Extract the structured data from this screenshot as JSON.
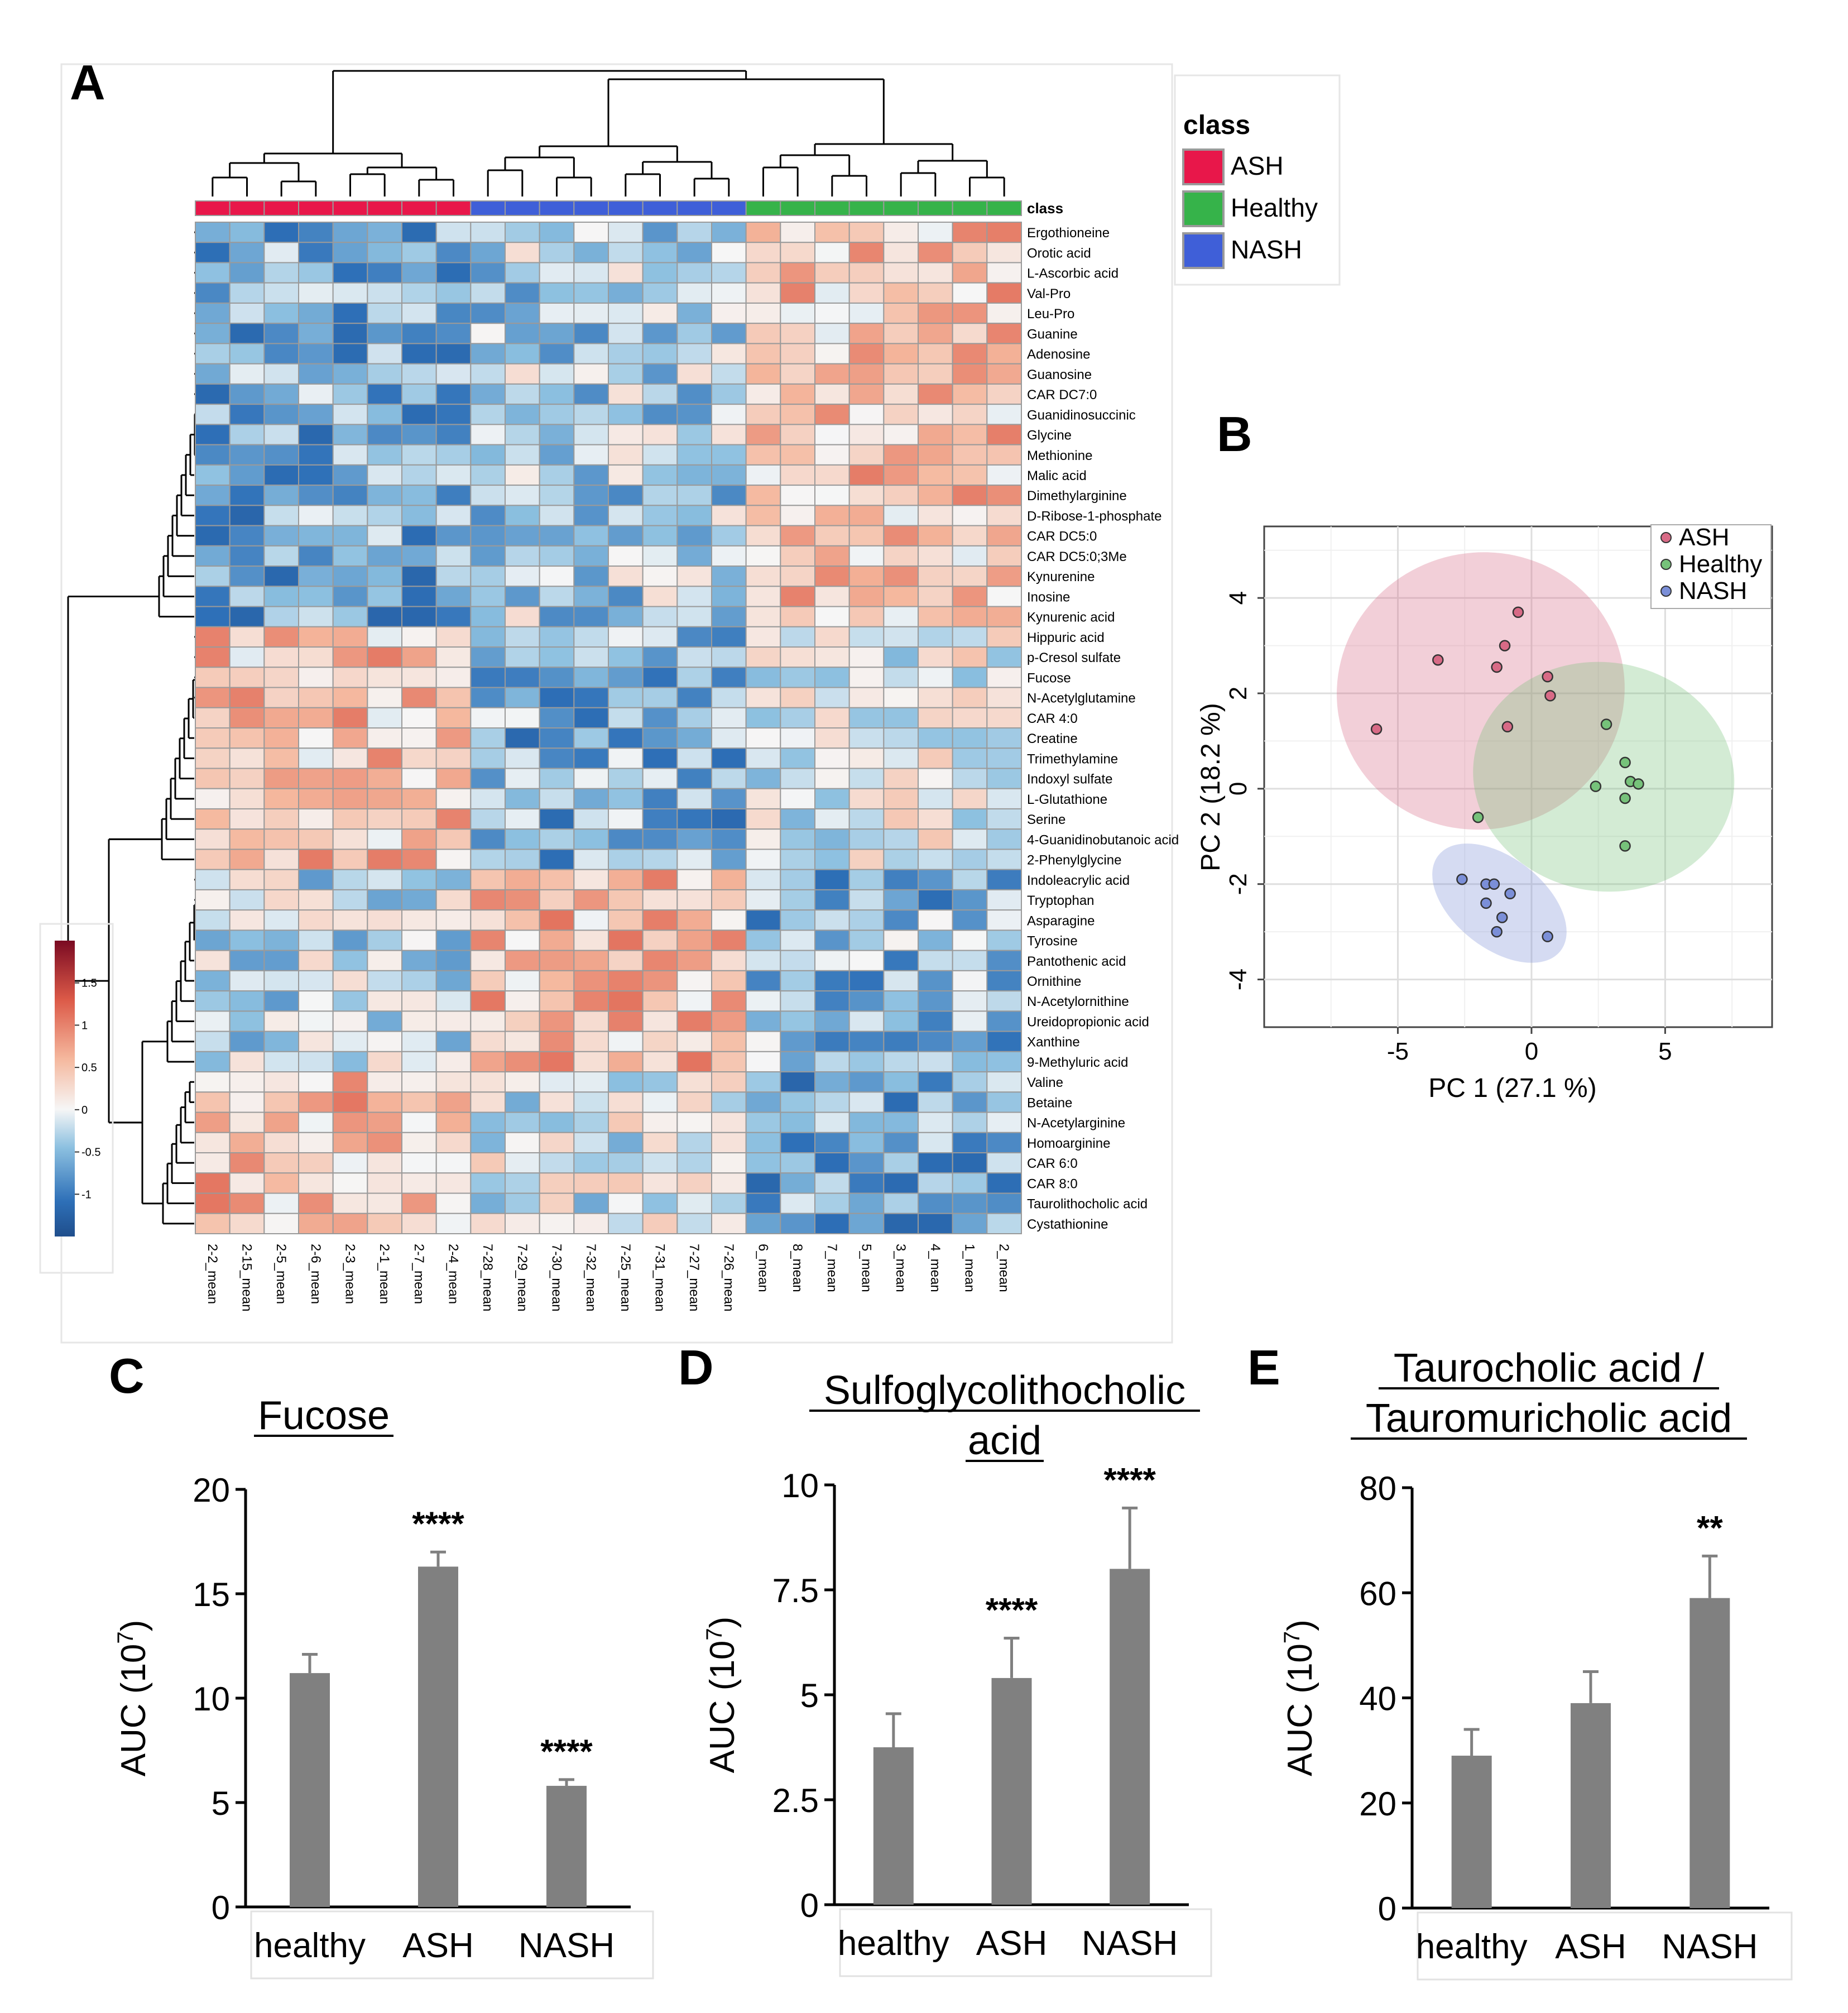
{
  "colors": {
    "ASH": "#e8174a",
    "Healthy": "#36b34a",
    "NASH": "#3f5fd8",
    "bar": "#808080",
    "pca_ASH": "#d86a86",
    "pca_Healthy": "#76c27a",
    "pca_NASH": "#7b8fd8"
  },
  "chart_data": [
    {
      "type": "heatmap",
      "panel": "A",
      "legend_title": "class",
      "class_track_label": "class",
      "classes": [
        "ASH",
        "Healthy",
        "NASH"
      ],
      "columns": [
        "2-2_mean",
        "2-15_mean",
        "2-5_mean",
        "2-6_mean",
        "2-3_mean",
        "2-1_mean",
        "2-7_mean",
        "2-4_mean",
        "7-28_mean",
        "7-29_mean",
        "7-30_mean",
        "7-32_mean",
        "7-25_mean",
        "7-31_mean",
        "7-27_mean",
        "7-26_mean",
        "6_mean",
        "8_mean",
        "7_mean",
        "5_mean",
        "3_mean",
        "4_mean",
        "1_mean",
        "2_mean"
      ],
      "column_classes": [
        "ASH",
        "ASH",
        "ASH",
        "ASH",
        "ASH",
        "ASH",
        "ASH",
        "ASH",
        "NASH",
        "NASH",
        "NASH",
        "NASH",
        "NASH",
        "NASH",
        "NASH",
        "NASH",
        "Healthy",
        "Healthy",
        "Healthy",
        "Healthy",
        "Healthy",
        "Healthy",
        "Healthy",
        "Healthy"
      ],
      "rows": [
        "Ergothioneine",
        "Orotic acid",
        "L-Ascorbic acid",
        "Val-Pro",
        "Leu-Pro",
        "Guanine",
        "Adenosine",
        "Guanosine",
        "CAR DC7:0",
        "Guanidinosuccinic",
        "Glycine",
        "Methionine",
        "Malic acid",
        "Dimethylarginine",
        "D-Ribose-1-phosphate",
        "CAR DC5:0",
        "CAR DC5:0;3Me",
        "Kynurenine",
        "Inosine",
        "Kynurenic acid",
        "Hippuric acid",
        "p-Cresol sulfate",
        "Fucose",
        "N-Acetylglutamine",
        "CAR 4:0",
        "Creatine",
        "Trimethylamine",
        "Indoxyl sulfate",
        "L-Glutathione",
        "Serine",
        "4-Guanidinobutanoic acid",
        "2-Phenylglycine",
        "Indoleacrylic acid",
        "Tryptophan",
        "Asparagine",
        "Tyrosine",
        "Pantothenic acid",
        "Ornithine",
        "N-Acetylornithine",
        "Ureidopropionic acid",
        "Xanthine",
        "9-Methyluric acid",
        "Valine",
        "Betaine",
        "N-Acetylarginine",
        "Homoarginine",
        "CAR 6:0",
        "CAR 8:0",
        "Taurolithocholic acid",
        "Cystathionine"
      ],
      "colorbar_ticks": [
        "1.5",
        "1",
        "0.5",
        "0",
        "-0.5",
        "-1"
      ],
      "colorbar_range": [
        -1.5,
        2.0
      ]
    },
    {
      "type": "scatter",
      "panel": "B",
      "xlabel": "PC 1 (27.1 %)",
      "ylabel": "PC 2 (18.2 %)",
      "xlim": [
        -10,
        9
      ],
      "ylim": [
        -5,
        5.5
      ],
      "xticks": [
        "-5",
        "0",
        "5"
      ],
      "yticks": [
        "-4",
        "-2",
        "0",
        "2",
        "4"
      ],
      "series": [
        {
          "name": "ASH",
          "points": [
            [
              -5.8,
              1.25
            ],
            [
              -3.5,
              2.7
            ],
            [
              -1.3,
              2.55
            ],
            [
              -1.0,
              3.0
            ],
            [
              -0.5,
              3.7
            ],
            [
              0.6,
              2.35
            ],
            [
              0.7,
              1.95
            ],
            [
              -0.9,
              1.3
            ]
          ]
        },
        {
          "name": "Healthy",
          "points": [
            [
              2.8,
              1.35
            ],
            [
              3.5,
              0.55
            ],
            [
              3.7,
              0.15
            ],
            [
              4.0,
              0.1
            ],
            [
              2.4,
              0.05
            ],
            [
              3.5,
              -0.2
            ],
            [
              3.5,
              -1.2
            ],
            [
              -2.0,
              -0.6
            ]
          ]
        },
        {
          "name": "NASH",
          "points": [
            [
              -2.6,
              -1.9
            ],
            [
              -1.7,
              -2.0
            ],
            [
              -1.4,
              -2.0
            ],
            [
              -0.8,
              -2.2
            ],
            [
              -1.7,
              -2.4
            ],
            [
              -1.1,
              -2.7
            ],
            [
              -1.3,
              -3.0
            ],
            [
              0.6,
              -3.1
            ]
          ]
        }
      ],
      "ellipses": [
        {
          "name": "ASH",
          "cx": -1.9,
          "cy": 2.05,
          "rx": 5.4,
          "ry": 2.9,
          "angle": 15
        },
        {
          "name": "Healthy",
          "cx": 2.7,
          "cy": 0.25,
          "rx": 4.9,
          "ry": 2.4,
          "angle": -9
        },
        {
          "name": "NASH",
          "cx": -1.2,
          "cy": -2.4,
          "rx": 2.9,
          "ry": 0.95,
          "angle": -38
        }
      ]
    },
    {
      "type": "bar",
      "panel": "C",
      "title": "Fucose",
      "categories": [
        "healthy",
        "ASH",
        "NASH"
      ],
      "values": [
        11.2,
        16.3,
        5.8
      ],
      "errors": [
        0.9,
        0.7,
        0.3
      ],
      "significance": [
        "",
        "****",
        "****"
      ],
      "ylabel": "AUC (10",
      "ylabel_sup": "7",
      "ylabel_close": ")",
      "ylim": [
        0,
        20
      ],
      "yticks": [
        "0",
        "5",
        "10",
        "15",
        "20"
      ]
    },
    {
      "type": "bar",
      "panel": "D",
      "title_lines": [
        "Sulfoglycolithocholic",
        "acid"
      ],
      "categories": [
        "healthy",
        "ASH",
        "NASH"
      ],
      "values": [
        3.75,
        5.4,
        8.0
      ],
      "errors": [
        0.8,
        0.95,
        1.45
      ],
      "significance": [
        "",
        "****",
        "****"
      ],
      "ylabel": "AUC (10",
      "ylabel_sup": "7",
      "ylabel_close": ")",
      "ylim": [
        0,
        10
      ],
      "yticks": [
        "0",
        "2.5",
        "5",
        "7.5",
        "10"
      ]
    },
    {
      "type": "bar",
      "panel": "E",
      "title_lines": [
        "Taurocholic acid /",
        "Tauromuricholic acid"
      ],
      "categories": [
        "healthy",
        "ASH",
        "NASH"
      ],
      "values": [
        29,
        39,
        59
      ],
      "errors": [
        5,
        6,
        8
      ],
      "significance": [
        "",
        "",
        "**"
      ],
      "ylabel": "AUC (10",
      "ylabel_sup": "7",
      "ylabel_close": ")",
      "ylim": [
        0,
        80
      ],
      "yticks": [
        "0",
        "20",
        "40",
        "60",
        "80"
      ]
    }
  ]
}
